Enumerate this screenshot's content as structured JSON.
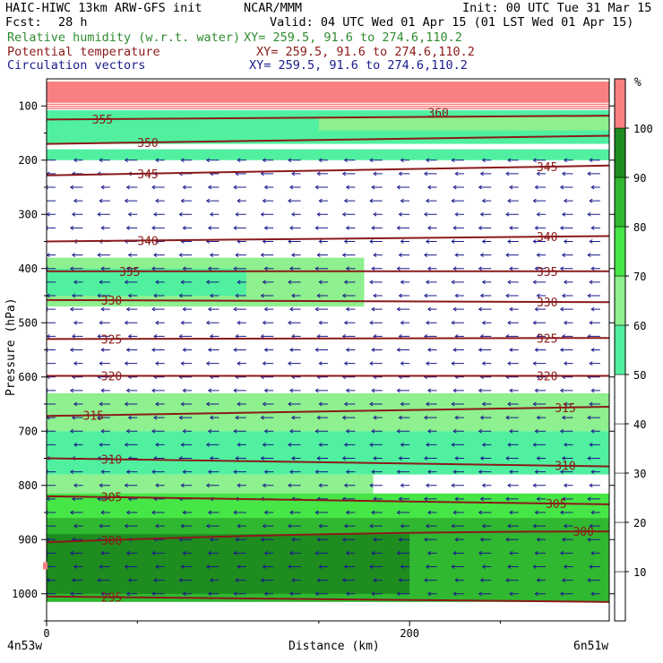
{
  "header": {
    "model": "HAIC-HIWC 13km ARW-GFS init",
    "org": "NCAR/MMM",
    "init": "Init: 00 UTC Tue 31 Mar 15",
    "fcst_label": "Fcst:",
    "fcst_value": "28 h",
    "valid": "Valid: 04 UTC Wed 01 Apr 15 (01 LST Wed 01 Apr 15)",
    "field1_name": "Relative humidity (w.r.t. water)",
    "field1_xy": "XY= 259.5, 91.6 to 274.6,110.2",
    "field2_name": "Potential temperature",
    "field2_xy": "XY= 259.5, 91.6 to 274.6,110.2",
    "field3_name": "Circulation vectors",
    "field3_xy": "XY= 259.5, 91.6 to 274.6,110.2",
    "color_rh": "#2e8b2e",
    "color_theta": "#8b1a1a",
    "color_vec": "#1a1a8b"
  },
  "chart_data": {
    "type": "cross-section",
    "ylabel": "Pressure (hPa)",
    "xlabel": "Distance (km)",
    "x_ticks": [
      "0",
      "200"
    ],
    "x_tick_values": [
      0,
      200
    ],
    "x_range_km": [
      0,
      310
    ],
    "y_ticks": [
      "100",
      "200",
      "300",
      "400",
      "500",
      "600",
      "700",
      "800",
      "900",
      "1000"
    ],
    "y_tick_values": [
      100,
      200,
      300,
      400,
      500,
      600,
      700,
      800,
      900,
      1000
    ],
    "y_range_hpa": [
      50,
      1050
    ],
    "left_endpoint": "4n53w",
    "right_endpoint": "6n51w",
    "colorbar": {
      "unit": "%",
      "levels": [
        10,
        20,
        30,
        40,
        50,
        60,
        70,
        80,
        90,
        100
      ],
      "colors": [
        "#ffffff",
        "#ffffff",
        "#ffffff",
        "#ffffff",
        "#ffffff",
        "#50f0a0",
        "#8ef08e",
        "#46e646",
        "#30b830",
        "#1e8c1e",
        "#f88080"
      ]
    },
    "rh_bands": [
      {
        "p_top": 55,
        "p_bot": 108,
        "x0": 0,
        "x1": 310,
        "rh": 105
      },
      {
        "p_top": 108,
        "p_bot": 170,
        "x0": 0,
        "x1": 310,
        "rh": 55
      },
      {
        "p_top": 120,
        "p_bot": 145,
        "x0": 150,
        "x1": 310,
        "rh": 65
      },
      {
        "p_top": 180,
        "p_bot": 200,
        "x0": 0,
        "x1": 310,
        "rh": 55
      },
      {
        "p_top": 380,
        "p_bot": 470,
        "x0": 0,
        "x1": 175,
        "rh": 65
      },
      {
        "p_top": 400,
        "p_bot": 450,
        "x0": 0,
        "x1": 110,
        "rh": 55
      },
      {
        "p_top": 630,
        "p_bot": 700,
        "x0": 0,
        "x1": 310,
        "rh": 65
      },
      {
        "p_top": 700,
        "p_bot": 780,
        "x0": 0,
        "x1": 310,
        "rh": 55
      },
      {
        "p_top": 780,
        "p_bot": 820,
        "x0": 0,
        "x1": 180,
        "rh": 65
      },
      {
        "p_top": 815,
        "p_bot": 860,
        "x0": 0,
        "x1": 310,
        "rh": 75
      },
      {
        "p_top": 860,
        "p_bot": 1015,
        "x0": 0,
        "x1": 310,
        "rh": 85
      },
      {
        "p_top": 890,
        "p_bot": 1000,
        "x0": 0,
        "x1": 200,
        "rh": 95
      }
    ],
    "theta_contours": [
      {
        "label": "355",
        "p_left": 125,
        "p_right": 118,
        "label_x_km": 25
      },
      {
        "label": "350",
        "p_left": 170,
        "p_right": 155,
        "label_x_km": 50
      },
      {
        "label": "345",
        "p_left": 228,
        "p_right": 210,
        "label_x_km": 50,
        "label2_x_km": 270
      },
      {
        "label": "340",
        "p_left": 350,
        "p_right": 340,
        "label_x_km": 50,
        "label2_x_km": 270
      },
      {
        "label": "335",
        "p_left": 405,
        "p_right": 405,
        "label_x_km": 40,
        "label2_x_km": 270
      },
      {
        "label": "330",
        "p_left": 458,
        "p_right": 462,
        "label_x_km": 30,
        "label2_x_km": 270
      },
      {
        "label": "325",
        "p_left": 530,
        "p_right": 528,
        "label_x_km": 30,
        "label2_x_km": 270
      },
      {
        "label": "320",
        "p_left": 598,
        "p_right": 598,
        "label_x_km": 30,
        "label2_x_km": 270
      },
      {
        "label": "315",
        "p_left": 672,
        "p_right": 655,
        "label_x_km": 20,
        "label2_x_km": 280
      },
      {
        "label": "310",
        "p_left": 750,
        "p_right": 765,
        "label_x_km": 30,
        "label2_x_km": 280
      },
      {
        "label": "305",
        "p_left": 820,
        "p_right": 835,
        "label_x_km": 30,
        "label2_x_km": 275
      },
      {
        "label": "300",
        "p_left": 905,
        "p_right": 885,
        "label_x_km": 30,
        "label2_x_km": 290
      },
      {
        "label": "295",
        "p_left": 1005,
        "p_right": 1015,
        "label_x_km": 30
      }
    ],
    "extra_label": "360",
    "extra_label_x_km": 210,
    "extra_label_p": 112,
    "vectors": {
      "direction": "westward",
      "col_spacing_km": 15,
      "row_spacing_hpa": 25,
      "p_top": 200,
      "p_bot": 1000
    }
  }
}
